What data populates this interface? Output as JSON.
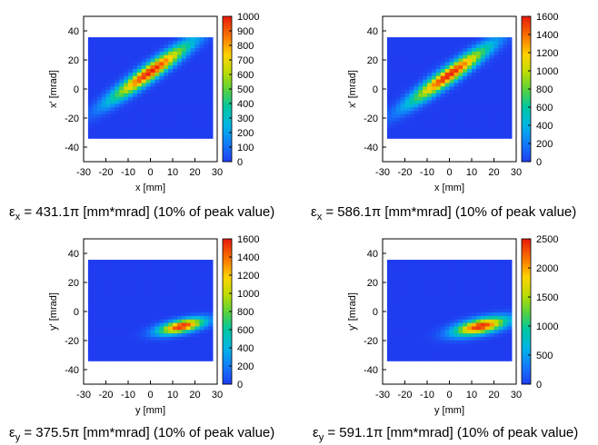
{
  "chart_data": [
    {
      "type": "heatmap",
      "xlabel": "x [mm]",
      "ylabel": "x' [mrad]",
      "xlim": [
        -30,
        30
      ],
      "ylim": [
        -50,
        50
      ],
      "xticks": [
        "-30",
        "-20",
        "-10",
        "0",
        "10",
        "20",
        "30"
      ],
      "yticks": [
        "40",
        "20",
        "0",
        "-20",
        "-40"
      ],
      "colorbar": {
        "min": 0,
        "max": 1000,
        "ticks": [
          "1000",
          "900",
          "800",
          "700",
          "600",
          "500",
          "400",
          "300",
          "200",
          "100",
          "0"
        ]
      },
      "distribution": {
        "region_x": [
          -28,
          28
        ],
        "region_y": [
          -34,
          34
        ],
        "peak_x": 0,
        "peak_y": 12,
        "slope": 1.05,
        "spread_along": 12,
        "spread_across": 4.5,
        "peak_value": 1000
      },
      "caption": {
        "symbol": "ε",
        "sub": "x",
        "text": " = 431.1π [mm*mrad] (10% of peak value)"
      }
    },
    {
      "type": "heatmap",
      "xlabel": "x [mm]",
      "ylabel": "x' [mrad]",
      "xlim": [
        -30,
        30
      ],
      "ylim": [
        -50,
        50
      ],
      "xticks": [
        "-30",
        "-20",
        "-10",
        "0",
        "10",
        "20",
        "30"
      ],
      "yticks": [
        "40",
        "20",
        "0",
        "-20",
        "-40"
      ],
      "colorbar": {
        "min": 0,
        "max": 1600,
        "ticks": [
          "1600",
          "1400",
          "1200",
          "1000",
          "800",
          "600",
          "400",
          "200",
          "0"
        ]
      },
      "distribution": {
        "region_x": [
          -28,
          28
        ],
        "region_y": [
          -34,
          34
        ],
        "peak_x": 0,
        "peak_y": 10,
        "slope": 1.05,
        "spread_along": 12,
        "spread_across": 4.5,
        "peak_value": 1600
      },
      "caption": {
        "symbol": "ε",
        "sub": "x",
        "text": " = 586.1π [mm*mrad] (10% of peak value)"
      }
    },
    {
      "type": "heatmap",
      "xlabel": "y [mm]",
      "ylabel": "y' [mrad]",
      "xlim": [
        -30,
        30
      ],
      "ylim": [
        -50,
        50
      ],
      "xticks": [
        "-30",
        "-20",
        "-10",
        "0",
        "10",
        "20",
        "30"
      ],
      "yticks": [
        "40",
        "20",
        "0",
        "-20",
        "-40"
      ],
      "colorbar": {
        "min": 0,
        "max": 1600,
        "ticks": [
          "1600",
          "1400",
          "1200",
          "1000",
          "800",
          "600",
          "400",
          "200",
          "0"
        ]
      },
      "distribution": {
        "region_x": [
          -28,
          28
        ],
        "region_y": [
          -34,
          34
        ],
        "peak_x": 14,
        "peak_y": -10,
        "slope": 0.3,
        "spread_along": 7,
        "spread_across": 3,
        "peak_value": 1600
      },
      "caption": {
        "symbol": "ε",
        "sub": "y",
        "text": " = 375.5π [mm*mrad] (10% of peak value)"
      }
    },
    {
      "type": "heatmap",
      "xlabel": "y [mm]",
      "ylabel": "y' [mrad]",
      "xlim": [
        -30,
        30
      ],
      "ylim": [
        -50,
        50
      ],
      "xticks": [
        "-30",
        "-20",
        "-10",
        "0",
        "10",
        "20",
        "30"
      ],
      "yticks": [
        "40",
        "20",
        "0",
        "-20",
        "-40"
      ],
      "colorbar": {
        "min": 0,
        "max": 2500,
        "ticks": [
          "2500",
          "2000",
          "1500",
          "1000",
          "500",
          "0"
        ]
      },
      "distribution": {
        "region_x": [
          -28,
          28
        ],
        "region_y": [
          -34,
          34
        ],
        "peak_x": 14,
        "peak_y": -10,
        "slope": 0.3,
        "spread_along": 8,
        "spread_across": 3.5,
        "peak_value": 2500
      },
      "caption": {
        "symbol": "ε",
        "sub": "y",
        "text": " = 591.1π [mm*mrad] (10% of peak value)"
      }
    }
  ],
  "colors": {
    "low": "#1f3cf0",
    "high": "#e81c0c"
  }
}
